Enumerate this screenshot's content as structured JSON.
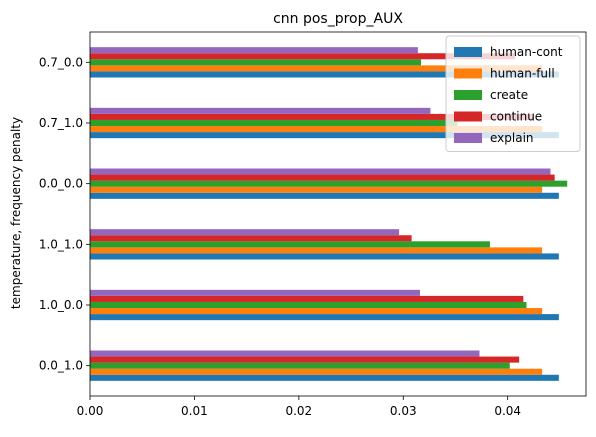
{
  "chart_data": {
    "type": "bar",
    "orientation": "horizontal",
    "title": "cnn pos_prop_AUX",
    "xlabel": "",
    "ylabel": "temperature, frequency penalty",
    "xlim": [
      0,
      0.0475
    ],
    "xticks": [
      "0.00",
      "0.01",
      "0.02",
      "0.03",
      "0.04"
    ],
    "xtick_values": [
      0,
      0.01,
      0.02,
      0.03,
      0.04
    ],
    "categories": [
      "0.0_1.0",
      "1.0_0.0",
      "1.0_1.0",
      "0.0_0.0",
      "0.7_1.0",
      "0.7_0.0"
    ],
    "grid": false,
    "legend_position": "top-right",
    "series": [
      {
        "name": "human-cont",
        "color": "#1f77b4",
        "values": [
          0.0449,
          0.0449,
          0.0449,
          0.0449,
          0.0449,
          0.0449
        ]
      },
      {
        "name": "human-full",
        "color": "#ff7f0e",
        "values": [
          0.0433,
          0.0433,
          0.0433,
          0.0433,
          0.0433,
          0.0433
        ]
      },
      {
        "name": "create",
        "color": "#2ca02c",
        "values": [
          0.0402,
          0.0418,
          0.0383,
          0.0457,
          0.0352,
          0.0317
        ]
      },
      {
        "name": "continue",
        "color": "#d62728",
        "values": [
          0.0411,
          0.0415,
          0.0308,
          0.0445,
          0.0425,
          0.0407
        ]
      },
      {
        "name": "explain",
        "color": "#9467bd",
        "values": [
          0.0373,
          0.0316,
          0.0296,
          0.0441,
          0.0326,
          0.0314
        ]
      }
    ]
  }
}
